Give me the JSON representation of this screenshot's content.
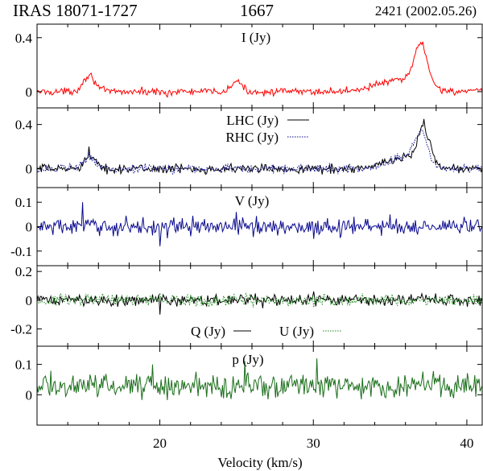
{
  "header": {
    "object": "IRAS 18071-1727",
    "frequency": "1667",
    "epoch": "2421 (2002.05.26)"
  },
  "chart_data": {
    "type": "line",
    "xlabel": "Velocity (km/s)",
    "xlim": [
      12,
      41
    ],
    "x_ticks": [
      "20",
      "30",
      "40"
    ],
    "x_tick_values": [
      20,
      30,
      40
    ],
    "panels": [
      {
        "id": "I",
        "title": "I (Jy)",
        "ylim": [
          -0.12,
          0.5
        ],
        "y_ticks": [
          "0",
          "0.4"
        ],
        "y_tick_values": [
          0,
          0.4
        ],
        "series": [
          {
            "name": "I (Jy)",
            "color": "#ff0000",
            "style": "solid",
            "noise": 0.03,
            "features": [
              [
                15.4,
                0.12,
                0.4
              ],
              [
                25.0,
                0.08,
                0.3
              ],
              [
                35.5,
                0.08,
                1.5
              ],
              [
                37.0,
                0.3,
                0.45
              ]
            ],
            "points": [
              [
                12,
                0.0
              ],
              [
                15.4,
                0.12
              ],
              [
                20.5,
                -0.04
              ],
              [
                25.0,
                0.08
              ],
              [
                30,
                0.0
              ],
              [
                35.5,
                0.1
              ],
              [
                37.1,
                0.37
              ],
              [
                38.3,
                0.0
              ],
              [
                41,
                0.0
              ]
            ]
          }
        ]
      },
      {
        "id": "LR",
        "title": "",
        "ylim": [
          -0.17,
          0.55
        ],
        "y_ticks": [
          "0",
          "0.4"
        ],
        "y_tick_values": [
          0,
          0.4
        ],
        "series": [
          {
            "name": "LHC (Jy)",
            "color": "#000000",
            "style": "solid",
            "noise": 0.045,
            "features": [
              [
                15.4,
                0.1,
                0.4
              ],
              [
                36.0,
                0.1,
                1.2
              ],
              [
                37.2,
                0.32,
                0.4
              ]
            ],
            "points": [
              [
                12,
                0.0
              ],
              [
                15.4,
                0.2
              ],
              [
                30,
                0.0
              ],
              [
                37.2,
                0.45
              ],
              [
                38.3,
                0.0
              ],
              [
                41,
                0.0
              ]
            ]
          },
          {
            "name": "RHC (Jy)",
            "color": "#0a0a90",
            "style": "dotted",
            "noise": 0.045,
            "features": [
              [
                15.4,
                0.09,
                0.4
              ],
              [
                36.0,
                0.1,
                1.2
              ],
              [
                37.0,
                0.27,
                0.4
              ]
            ],
            "points": [
              [
                12,
                0.0
              ],
              [
                15.4,
                0.15
              ],
              [
                30,
                0.0
              ],
              [
                37.0,
                0.35
              ],
              [
                38.3,
                0.0
              ],
              [
                41,
                0.0
              ]
            ]
          }
        ]
      },
      {
        "id": "V",
        "title": "V (Jy)",
        "ylim": [
          -0.16,
          0.16
        ],
        "y_ticks": [
          "-0.1",
          "0",
          "0.1"
        ],
        "y_tick_values": [
          -0.1,
          0,
          0.1
        ],
        "series": [
          {
            "name": "V (Jy)",
            "color": "#0a0a90",
            "style": "solid",
            "noise": 0.04,
            "features": [],
            "points": [
              [
                12,
                0.0
              ],
              [
                15.0,
                0.1
              ],
              [
                20,
                -0.08
              ],
              [
                25,
                0.06
              ],
              [
                30,
                -0.05
              ],
              [
                35,
                0.05
              ],
              [
                41,
                0.0
              ]
            ]
          }
        ]
      },
      {
        "id": "QU",
        "title": "",
        "ylim": [
          -0.32,
          0.24
        ],
        "y_ticks": [
          "-0.2",
          "0",
          "0.2"
        ],
        "y_tick_values": [
          -0.2,
          0,
          0.2
        ],
        "series": [
          {
            "name": "Q (Jy)",
            "color": "#000000",
            "style": "solid",
            "noise": 0.045,
            "features": [],
            "points": [
              [
                12,
                0.0
              ],
              [
                20,
                -0.1
              ],
              [
                30,
                0.06
              ],
              [
                41,
                0.0
              ]
            ]
          },
          {
            "name": "U (Jy)",
            "color": "#1a8a1a",
            "style": "dotted",
            "noise": 0.045,
            "features": [],
            "points": [
              [
                12,
                0.0
              ],
              [
                20,
                0.05
              ],
              [
                30,
                -0.05
              ],
              [
                41,
                0.0
              ]
            ]
          }
        ]
      },
      {
        "id": "p",
        "title": "p (Jy)",
        "ylim": [
          -0.1,
          0.16
        ],
        "y_ticks": [
          "0",
          "0.1"
        ],
        "y_tick_values": [
          0,
          0.1
        ],
        "series": [
          {
            "name": "p (Jy)",
            "color": "#1a6e1a",
            "style": "solid",
            "noise": 0.045,
            "mean": 0.03,
            "features": [],
            "points": [
              [
                12,
                0.03
              ],
              [
                19.5,
                0.1
              ],
              [
                25.5,
                0.11
              ],
              [
                30.2,
                0.12
              ],
              [
                35,
                0.03
              ],
              [
                41,
                0.03
              ]
            ]
          }
        ]
      }
    ]
  }
}
